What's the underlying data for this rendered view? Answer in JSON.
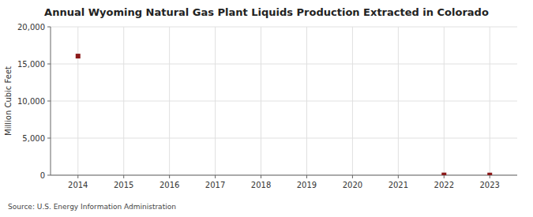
{
  "chart_data": {
    "type": "scatter",
    "title": "Annual Wyoming Natural Gas Plant Liquids Production Extracted in Colorado",
    "y_label": "Million Cubic Feet",
    "annotations": [
      "Source: U.S. Energy Information Administration"
    ],
    "x": [
      2014,
      2022,
      2023
    ],
    "values": [
      16054,
      30,
      20
    ],
    "color": "#8b1a1a",
    "marker": "square",
    "xlim": [
      2013.4,
      2023.6
    ],
    "ylim": [
      0,
      20000
    ],
    "xticks": [
      2014,
      2015,
      2016,
      2017,
      2018,
      2019,
      2020,
      2021,
      2022,
      2023
    ],
    "yticks": [
      0,
      {
        "value": 5000,
        "label": "5,000"
      },
      {
        "value": 10000,
        "label": "10,000"
      },
      {
        "value": 15000,
        "label": "15,000"
      },
      {
        "value": 20000,
        "label": "20,000"
      }
    ],
    "grid": true
  }
}
